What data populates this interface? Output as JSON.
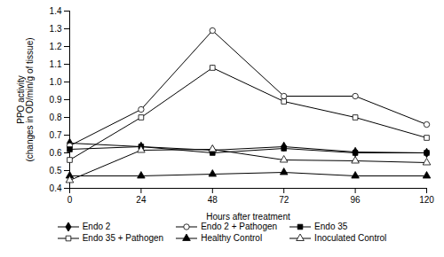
{
  "chart_data": {
    "type": "line",
    "xlabel": "Hours after treatment",
    "ylabel": "PPO activity\n(changes in OD/min/g of tissue)",
    "x": [
      0,
      24,
      48,
      72,
      96,
      120
    ],
    "xlim": [
      0,
      120
    ],
    "xticks": [
      0,
      24,
      48,
      72,
      96,
      120
    ],
    "ylim": [
      0.4,
      1.4
    ],
    "yticks": [
      0.4,
      0.5,
      0.6,
      0.7,
      0.8,
      0.9,
      {
        "value": 1.0,
        "label": "1.0"
      },
      1.1,
      1.2,
      1.3,
      1.4
    ],
    "grid": false,
    "legend": "bottom",
    "series": [
      {
        "name": "Endo 2",
        "color": "#000000",
        "marker": "diamond",
        "values": [
          0.655,
          0.635,
          0.615,
          0.635,
          0.605,
          0.6
        ],
        "yerr": [
          0.01,
          0.01,
          0.01,
          0.01,
          0.01,
          0.01
        ]
      },
      {
        "name": "Endo 2 + Pathogen",
        "color": "#000000",
        "marker": "circle-open",
        "values": [
          0.64,
          0.845,
          1.29,
          0.92,
          0.92,
          0.76
        ],
        "yerr": [
          0.01,
          0.012,
          0.015,
          0.015,
          0.012,
          0.012
        ]
      },
      {
        "name": "Endo 35",
        "color": "#000000",
        "marker": "square",
        "values": [
          0.62,
          0.635,
          0.6,
          0.625,
          0.6,
          0.6
        ],
        "yerr": [
          0.01,
          0.01,
          0.01,
          0.01,
          0.01,
          0.01
        ]
      },
      {
        "name": "Endo 35 + Pathogen",
        "color": "#000000",
        "marker": "square-open",
        "values": [
          0.56,
          0.8,
          1.08,
          0.89,
          0.8,
          0.685
        ],
        "yerr": [
          0.01,
          0.012,
          0.015,
          0.015,
          0.012,
          0.012
        ]
      },
      {
        "name": "Healthy Control",
        "color": "#000000",
        "marker": "triangle",
        "values": [
          0.47,
          0.47,
          0.48,
          0.49,
          0.47,
          0.47
        ],
        "yerr": [
          0.008,
          0.008,
          0.008,
          0.008,
          0.008,
          0.008
        ]
      },
      {
        "name": "Inoculated Control",
        "color": "#000000",
        "marker": "triangle-open",
        "values": [
          0.445,
          0.615,
          0.62,
          0.56,
          0.555,
          0.545
        ],
        "yerr": [
          0.01,
          0.01,
          0.01,
          0.01,
          0.01,
          0.01
        ]
      }
    ]
  }
}
